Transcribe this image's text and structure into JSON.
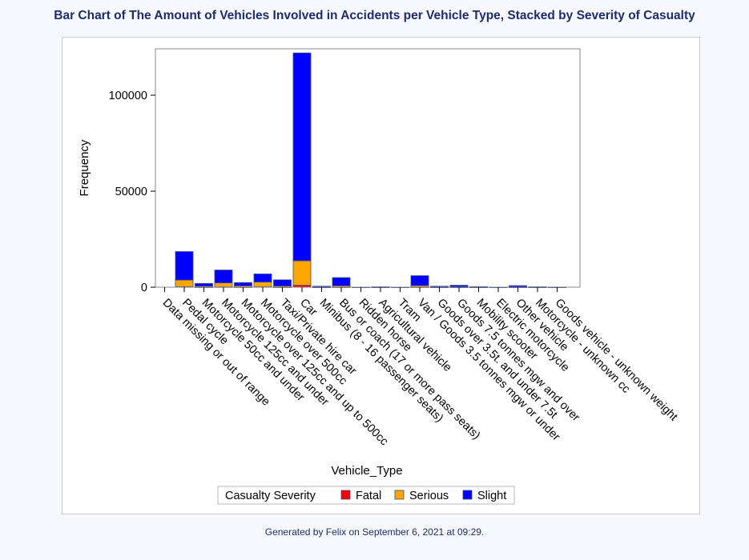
{
  "title": "Bar Chart of The Amount of Vehicles Involved in Accidents per Vehicle Type, Stacked by Severity of Casualty",
  "footnote": "Generated by Felix on September 6, 2021 at 09:29.",
  "colors": {
    "title": "#1c2c6c",
    "fatal": "#ff0000",
    "serious": "#ffa500",
    "slight": "#0000ff",
    "bar_outline": "#3a4a8a",
    "frame": "#888888"
  },
  "chart_data": {
    "type": "bar",
    "stacked": true,
    "title": "Bar Chart of The Amount of Vehicles Involved in Accidents per Vehicle Type, Stacked by Severity of Casualty",
    "xlabel": "Vehicle_Type",
    "ylabel": "Frequency",
    "ylim": [
      0,
      125000
    ],
    "yticks": [
      0,
      50000,
      100000
    ],
    "ytick_labels": [
      "0",
      "50000",
      "100000"
    ],
    "categories": [
      "Data missing or out of range",
      "Pedal cycle",
      "Motorcycle 50cc and under",
      "Motorcycle 125cc and under",
      "Motorcycle over 125cc and up to 500cc",
      "Motorcycle over 500cc",
      "Taxi/Private hire car",
      "Car",
      "Minibus (8 - 16 passenger seats)",
      "Bus or coach (17 or more pass seats)",
      "Ridden horse",
      "Agricultural vehicle",
      "Tram",
      "Van / Goods 3.5 tonnes mgw or under",
      "Goods over 3.5t. and under 7.5t",
      "Goods 7.5 tonnes mgw and over",
      "Mobility scooter",
      "Electric motorcycle",
      "Other vehicle",
      "Motorcycle - unknown cc",
      "Goods vehicle - unknown weight"
    ],
    "legend": {
      "title": "Casualty Severity",
      "position": "bottom",
      "entries": [
        "Fatal",
        "Serious",
        "Slight"
      ]
    },
    "series": [
      {
        "name": "Fatal",
        "values": [
          0,
          250,
          40,
          150,
          60,
          200,
          30,
          1000,
          5,
          40,
          0,
          3,
          0,
          60,
          5,
          15,
          3,
          1,
          5,
          2,
          1
        ]
      },
      {
        "name": "Serious",
        "values": [
          0,
          3500,
          500,
          2100,
          650,
          2500,
          600,
          12800,
          80,
          700,
          10,
          50,
          5,
          800,
          60,
          150,
          50,
          10,
          120,
          30,
          10
        ]
      },
      {
        "name": "Slight",
        "values": [
          0,
          14800,
          1400,
          6700,
          1700,
          4200,
          3200,
          108200,
          415,
          4260,
          15,
          150,
          10,
          5140,
          435,
          835,
          247,
          19,
          675,
          168,
          64
        ]
      }
    ]
  }
}
